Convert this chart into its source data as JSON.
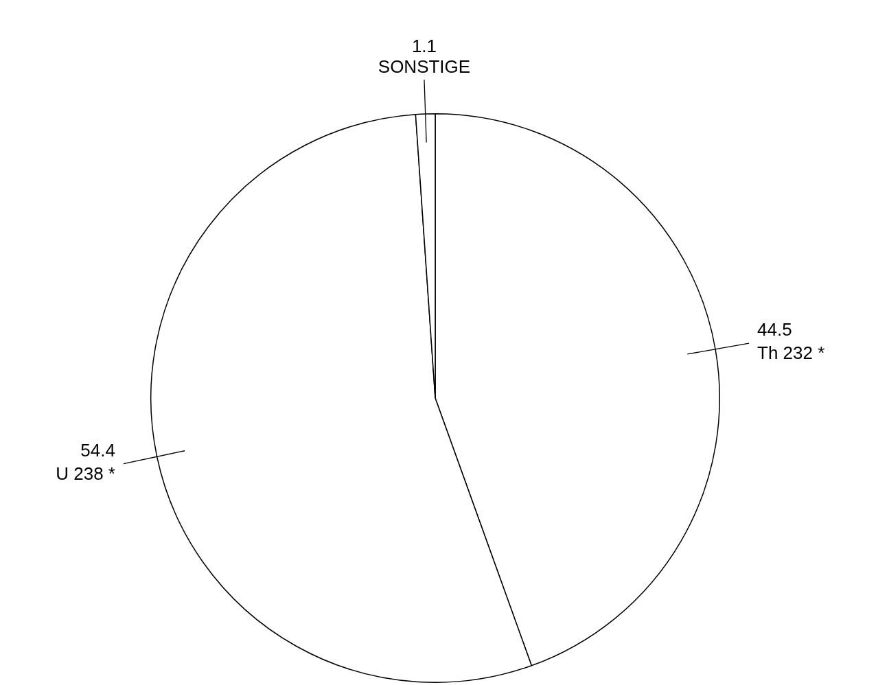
{
  "chart_data": {
    "type": "pie",
    "categories": [
      "Th 232 *",
      "U 238 *",
      "SONSTIGE"
    ],
    "values": [
      44.5,
      54.4,
      1.1
    ],
    "colors": [
      "#ffffff",
      "#ffffff",
      "#ffffff"
    ],
    "data_labels": true,
    "legend": false
  }
}
